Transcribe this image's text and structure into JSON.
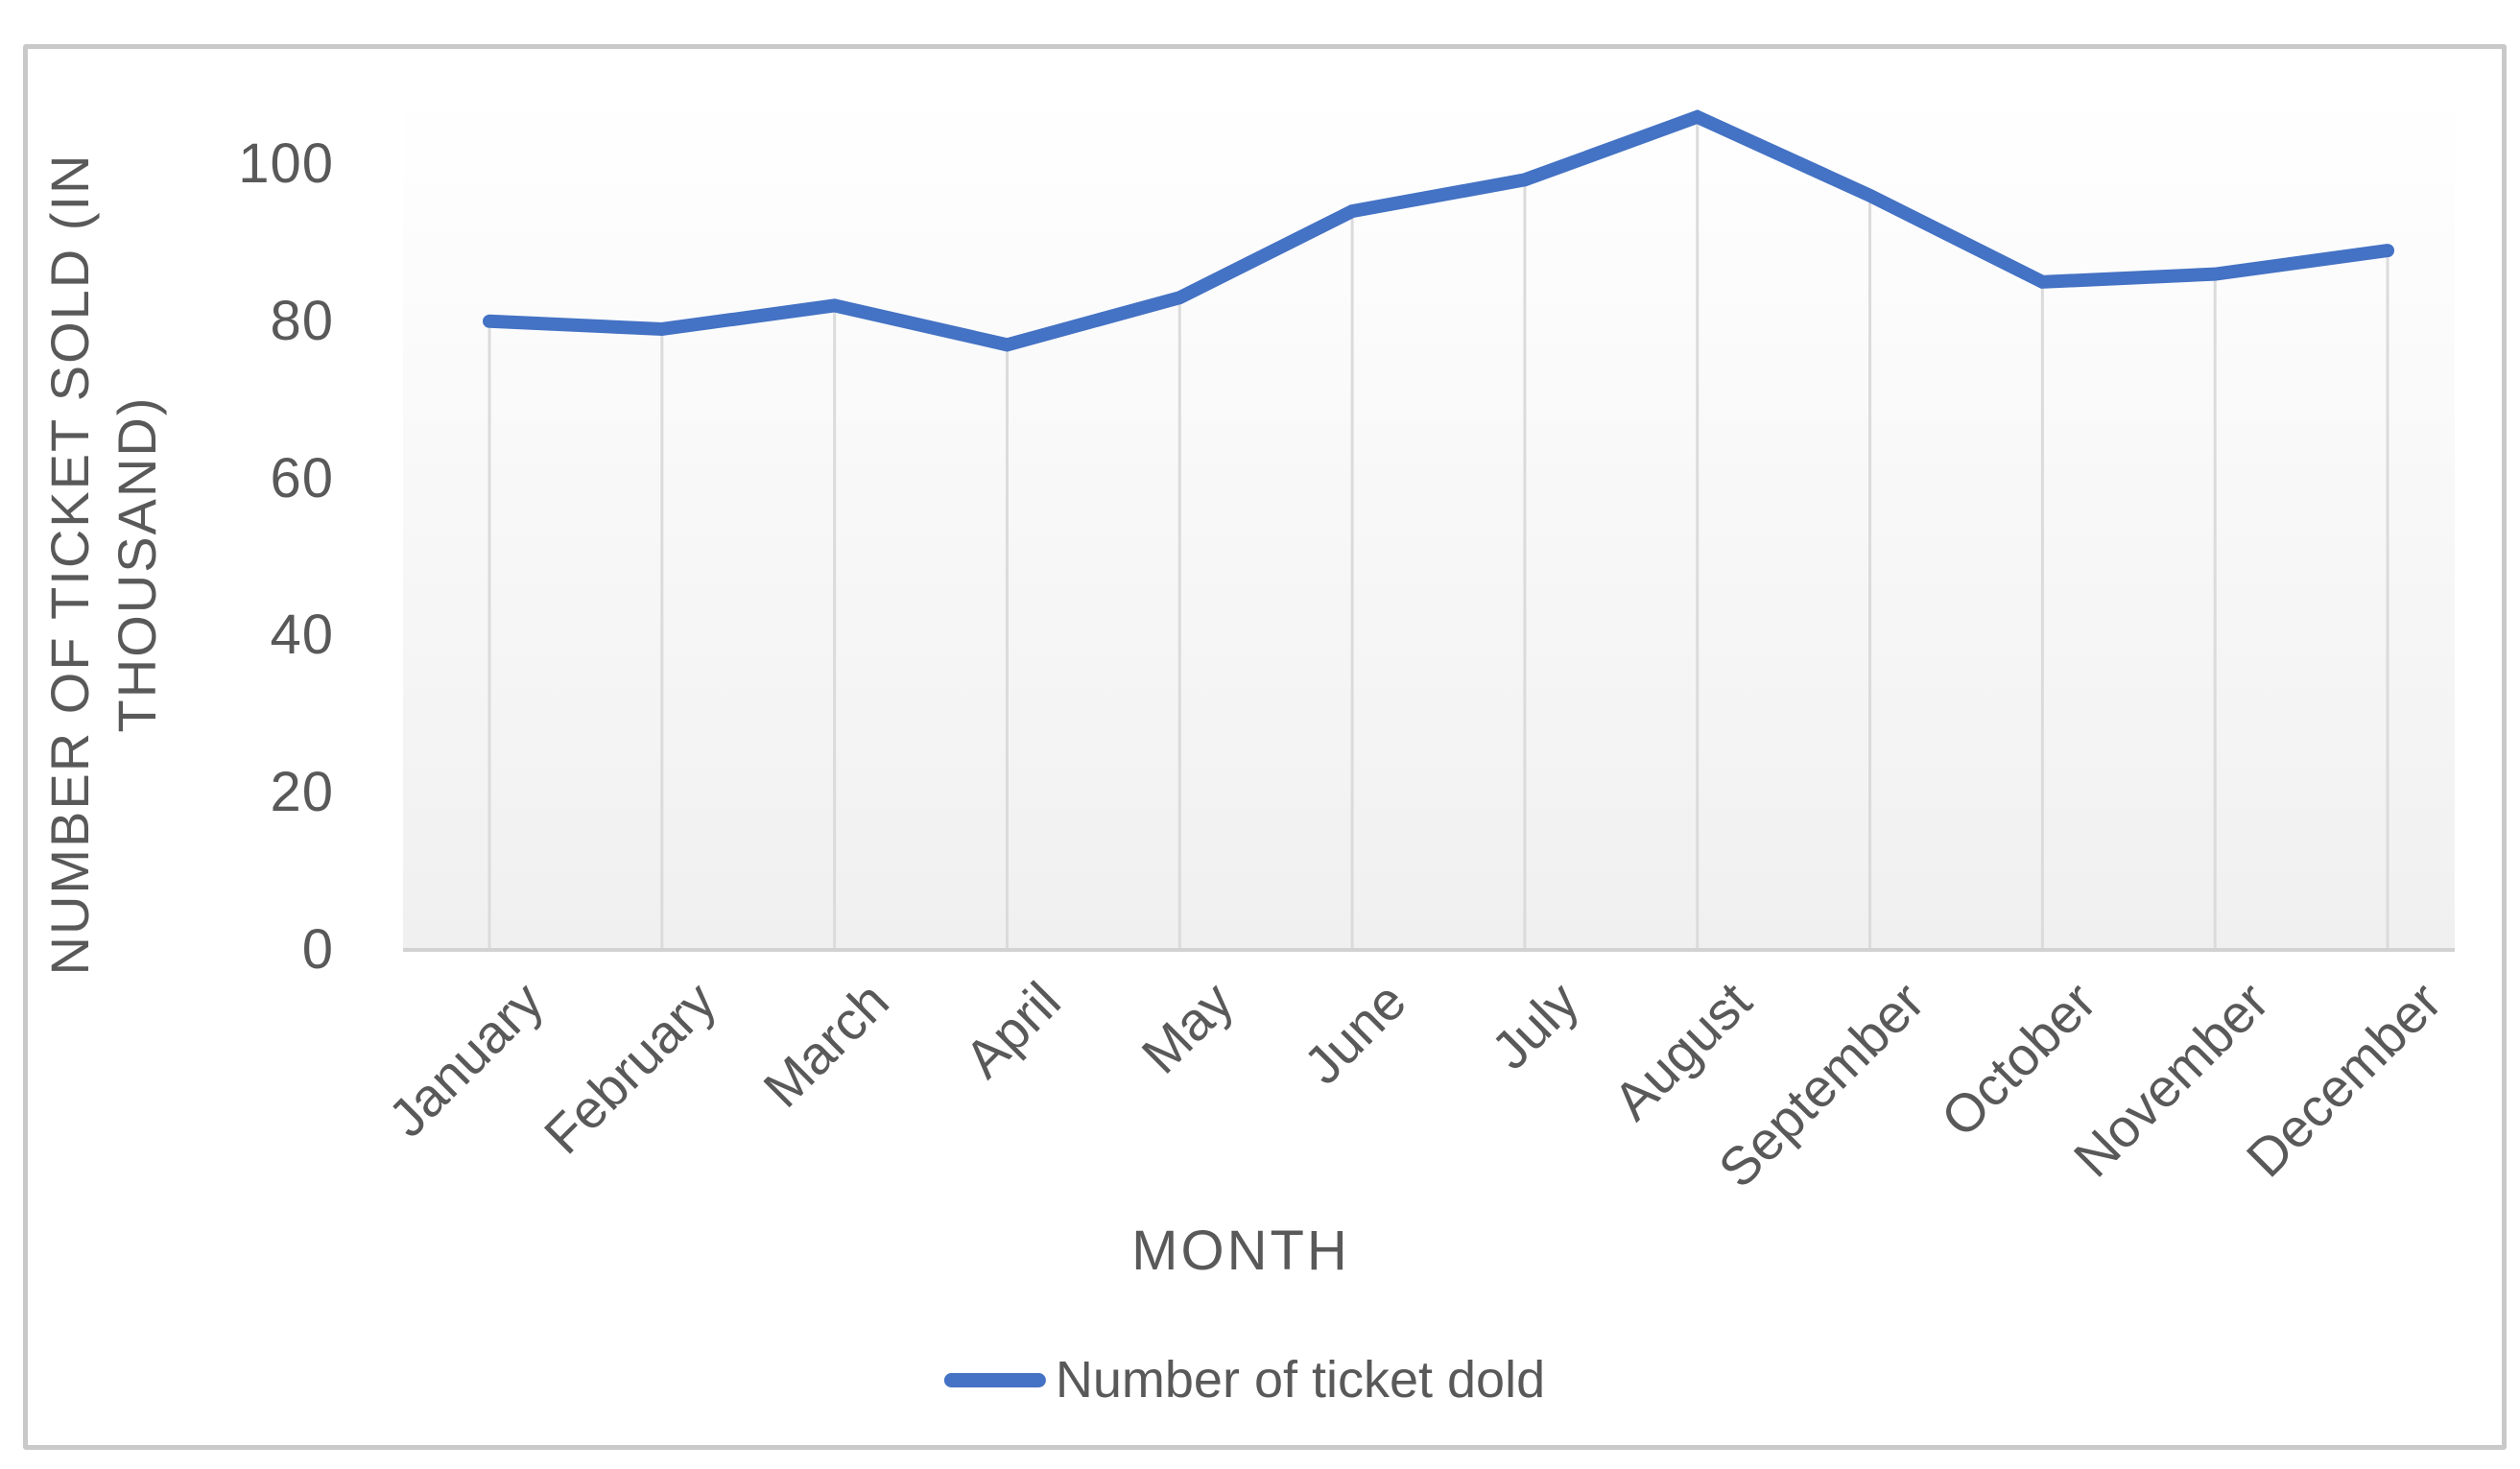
{
  "chart_data": {
    "type": "line",
    "categories": [
      "January",
      "February",
      "March",
      "April",
      "May",
      "June",
      "July",
      "August",
      "September",
      "October",
      "November",
      "December"
    ],
    "series": [
      {
        "name": "Number of ticket dold",
        "values": [
          80,
          79,
          82,
          77,
          83,
          94,
          98,
          106,
          96,
          85,
          86,
          89
        ]
      }
    ],
    "xlabel": "MONTH",
    "ylabel": "NUMBER OF TICKET SOLD (IN THOUSAND)",
    "ylabel_lines": [
      "NUMBER OF TICKET SOLD (IN",
      "THOUSAND)"
    ],
    "yticks": [
      0,
      20,
      40,
      60,
      80,
      100
    ],
    "ylim": [
      0,
      110
    ],
    "grid": "none",
    "drop_lines": true,
    "legend_position": "bottom",
    "line_color": "#4472C4",
    "drop_line_color": "#DBDBDB",
    "axis_line_color": "#D2D2D2",
    "text_color": "#595959",
    "border_color": "#C9C9C9"
  }
}
